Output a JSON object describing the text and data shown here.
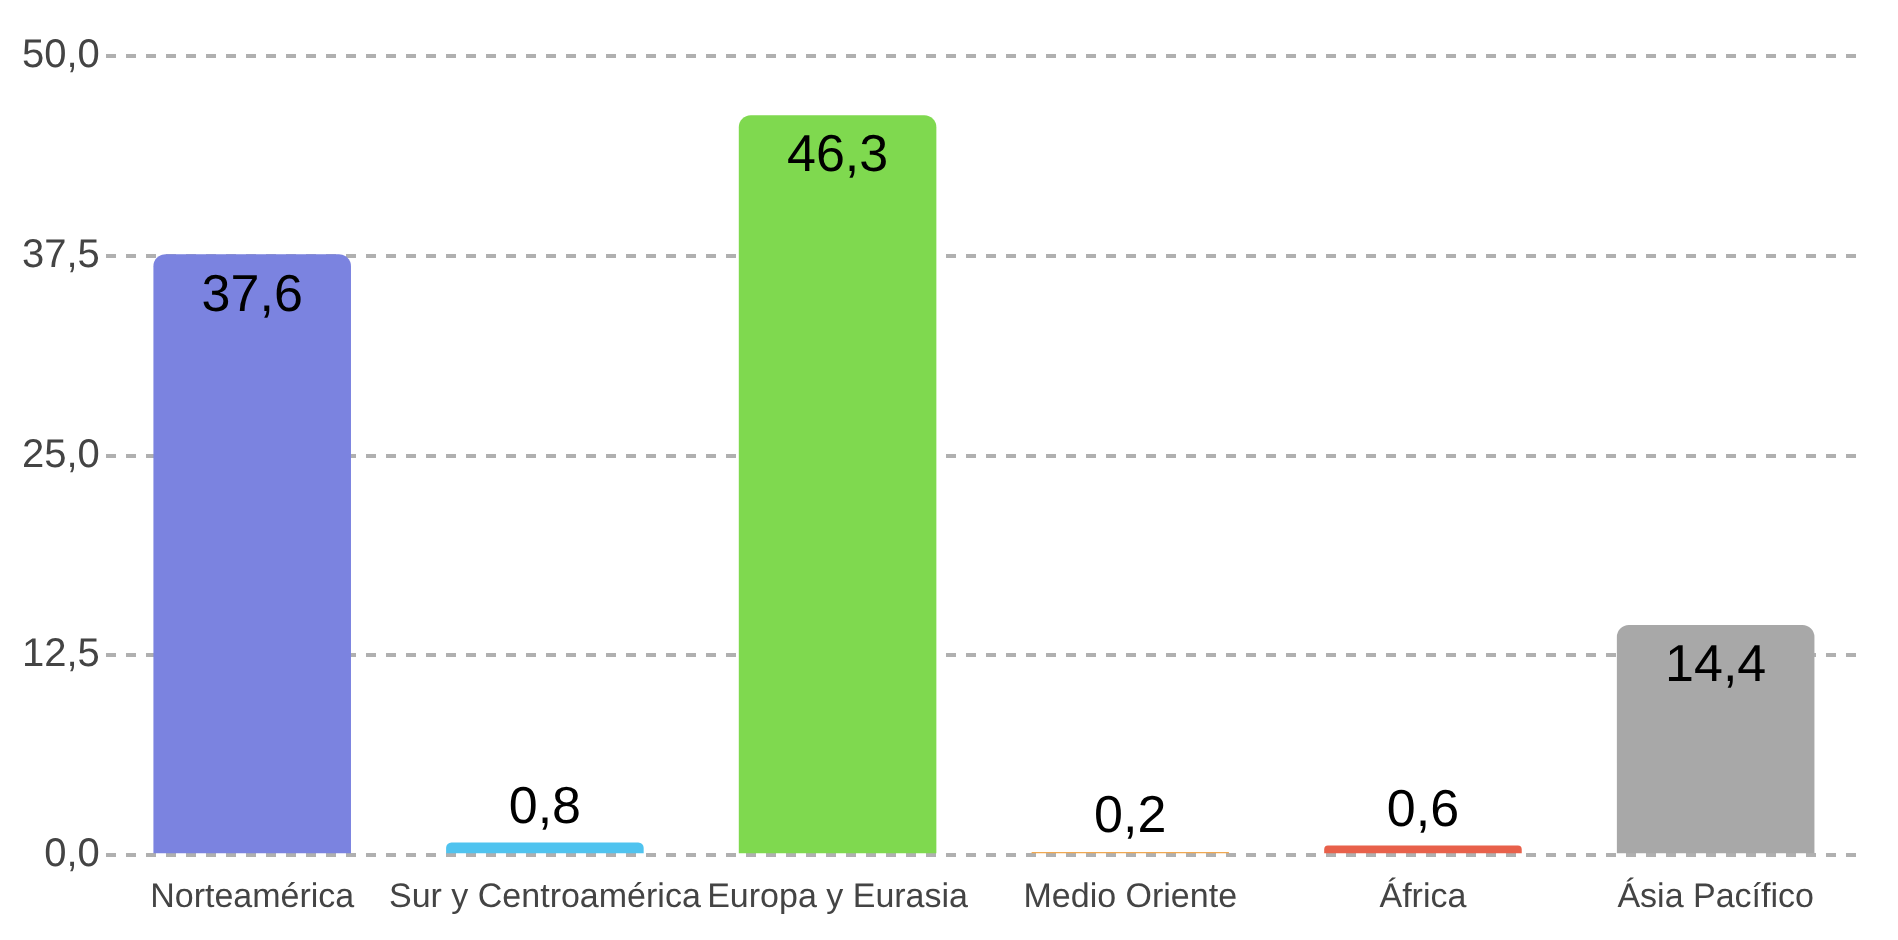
{
  "chart_data": {
    "type": "bar",
    "categories": [
      "Norteamérica",
      "Sur y Centroamérica",
      "Europa y Eurasia",
      "Medio Oriente",
      "África",
      "Ásia Pacífico"
    ],
    "values": [
      37.6,
      0.8,
      46.3,
      0.2,
      0.6,
      14.4
    ],
    "colors": [
      "#7b83e0",
      "#4fc3ef",
      "#7fd94f",
      "#f0a850",
      "#e8604a",
      "#a8a8a8"
    ],
    "value_labels": [
      "37,6",
      "0,8",
      "46,3",
      "0,2",
      "0,6",
      "14,4"
    ],
    "ylim": [
      0,
      50
    ],
    "yticks": [
      {
        "value": 0,
        "label": "0,0"
      },
      {
        "value": 12.5,
        "label": "12,5"
      },
      {
        "value": 25,
        "label": "25,0"
      },
      {
        "value": 37.5,
        "label": "37,5"
      },
      {
        "value": 50,
        "label": "50,0"
      }
    ],
    "grid": "y",
    "legend": false
  }
}
